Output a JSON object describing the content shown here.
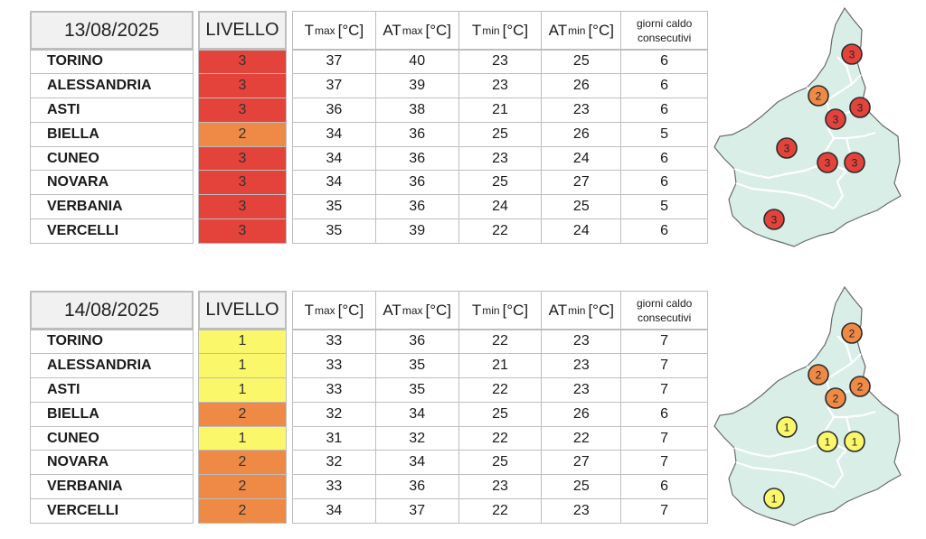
{
  "colors": {
    "level_1": "#fbf76a",
    "level_2": "#ee8a45",
    "level_3": "#e4433b",
    "map_fill": "#d8eee7",
    "map_border": "#6a6a6a"
  },
  "header_labels": {
    "livello": "LIVELLO",
    "tmax_t": "T",
    "tmax_sub": "max",
    "tmax_unit": "[°C]",
    "atmax_t": "AT",
    "atmax_sub": "max",
    "atmax_unit": "[°C]",
    "tmin_t": "T",
    "tmin_sub": "min",
    "tmin_unit": "[°C]",
    "atmin_t": "AT",
    "atmin_sub": "min",
    "atmin_unit": "[°C]",
    "giorni_line1": "giorni caldo",
    "giorni_line2": "consecutivi"
  },
  "tables": [
    {
      "date": "13/08/2025",
      "rows": [
        {
          "city": "TORINO",
          "level": "3",
          "tmax": "37",
          "atmax": "40",
          "tmin": "23",
          "atmin": "25",
          "days": "6"
        },
        {
          "city": "ALESSANDRIA",
          "level": "3",
          "tmax": "37",
          "atmax": "39",
          "tmin": "23",
          "atmin": "26",
          "days": "6"
        },
        {
          "city": "ASTI",
          "level": "3",
          "tmax": "36",
          "atmax": "38",
          "tmin": "21",
          "atmin": "23",
          "days": "6"
        },
        {
          "city": "BIELLA",
          "level": "2",
          "tmax": "34",
          "atmax": "36",
          "tmin": "25",
          "atmin": "26",
          "days": "5"
        },
        {
          "city": "CUNEO",
          "level": "3",
          "tmax": "34",
          "atmax": "36",
          "tmin": "23",
          "atmin": "24",
          "days": "6"
        },
        {
          "city": "NOVARA",
          "level": "3",
          "tmax": "34",
          "atmax": "36",
          "tmin": "25",
          "atmin": "27",
          "days": "6"
        },
        {
          "city": "VERBANIA",
          "level": "3",
          "tmax": "35",
          "atmax": "36",
          "tmin": "24",
          "atmin": "25",
          "days": "5"
        },
        {
          "city": "VERCELLI",
          "level": "3",
          "tmax": "35",
          "atmax": "39",
          "tmin": "22",
          "atmin": "24",
          "days": "6"
        }
      ],
      "map_badges": [
        {
          "region": "verbania",
          "level": "3"
        },
        {
          "region": "biella",
          "level": "2"
        },
        {
          "region": "novara",
          "level": "3"
        },
        {
          "region": "vercelli",
          "level": "3"
        },
        {
          "region": "torino",
          "level": "3"
        },
        {
          "region": "asti",
          "level": "3"
        },
        {
          "region": "alessandria",
          "level": "3"
        },
        {
          "region": "cuneo",
          "level": "3"
        }
      ]
    },
    {
      "date": "14/08/2025",
      "rows": [
        {
          "city": "TORINO",
          "level": "1",
          "tmax": "33",
          "atmax": "36",
          "tmin": "22",
          "atmin": "23",
          "days": "7"
        },
        {
          "city": "ALESSANDRIA",
          "level": "1",
          "tmax": "33",
          "atmax": "35",
          "tmin": "21",
          "atmin": "23",
          "days": "7"
        },
        {
          "city": "ASTI",
          "level": "1",
          "tmax": "33",
          "atmax": "35",
          "tmin": "22",
          "atmin": "23",
          "days": "7"
        },
        {
          "city": "BIELLA",
          "level": "2",
          "tmax": "32",
          "atmax": "34",
          "tmin": "25",
          "atmin": "26",
          "days": "6"
        },
        {
          "city": "CUNEO",
          "level": "1",
          "tmax": "31",
          "atmax": "32",
          "tmin": "22",
          "atmin": "22",
          "days": "7"
        },
        {
          "city": "NOVARA",
          "level": "2",
          "tmax": "32",
          "atmax": "34",
          "tmin": "25",
          "atmin": "27",
          "days": "7"
        },
        {
          "city": "VERBANIA",
          "level": "2",
          "tmax": "33",
          "atmax": "36",
          "tmin": "23",
          "atmin": "25",
          "days": "6"
        },
        {
          "city": "VERCELLI",
          "level": "2",
          "tmax": "34",
          "atmax": "37",
          "tmin": "22",
          "atmin": "23",
          "days": "7"
        }
      ],
      "map_badges": [
        {
          "region": "verbania",
          "level": "2"
        },
        {
          "region": "biella",
          "level": "2"
        },
        {
          "region": "novara",
          "level": "2"
        },
        {
          "region": "vercelli",
          "level": "2"
        },
        {
          "region": "torino",
          "level": "1"
        },
        {
          "region": "asti",
          "level": "1"
        },
        {
          "region": "alessandria",
          "level": "1"
        },
        {
          "region": "cuneo",
          "level": "1"
        }
      ]
    }
  ]
}
